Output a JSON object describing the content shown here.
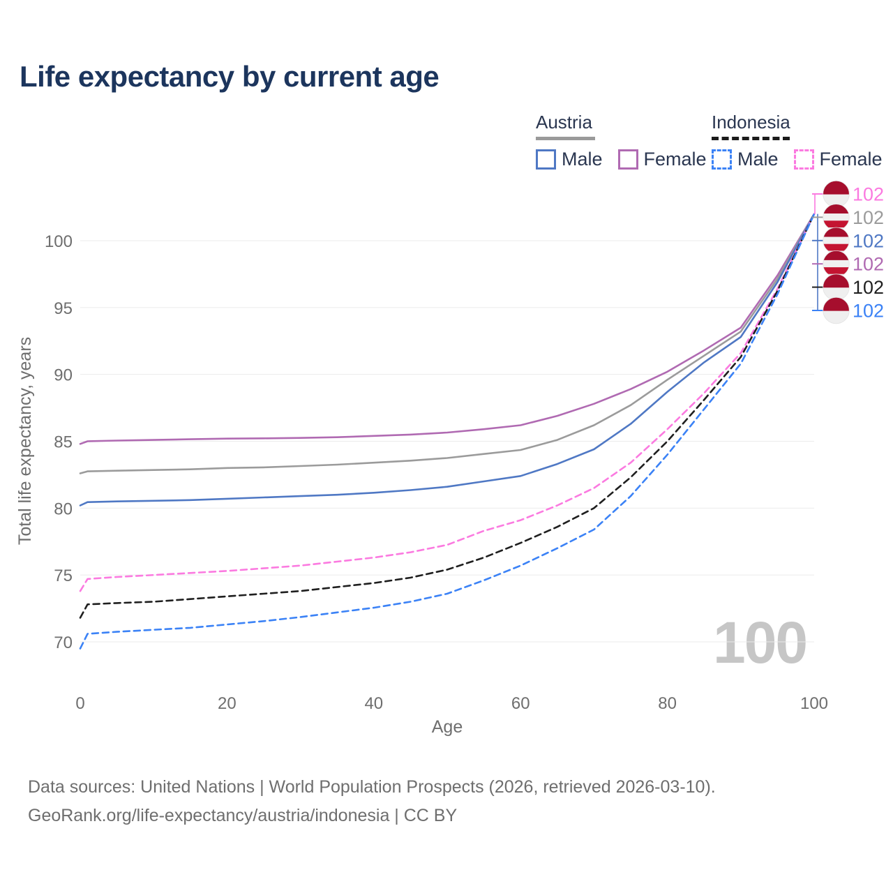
{
  "title": "Life expectancy by current age",
  "legend": {
    "groups": [
      {
        "country": "Austria",
        "line_style": "solid",
        "underline_color": "#9a9a9a",
        "items": [
          {
            "label": "Male",
            "color": "#4f78c4",
            "dashed": false
          },
          {
            "label": "Female",
            "color": "#b06ab2",
            "dashed": false
          }
        ]
      },
      {
        "country": "Indonesia",
        "line_style": "dashed",
        "underline_color": "#1b1b1b",
        "items": [
          {
            "label": "Male",
            "color": "#3b82f6",
            "dashed": true
          },
          {
            "label": "Female",
            "color": "#fb7ae0",
            "dashed": true
          }
        ]
      }
    ]
  },
  "chart_data": {
    "type": "line",
    "title": "Life expectancy by current age",
    "xlabel": "Age",
    "ylabel": "Total life expectancy, years",
    "x_ticks": [
      0,
      20,
      40,
      60,
      80,
      100
    ],
    "y_ticks": [
      70,
      75,
      80,
      85,
      90,
      95,
      100
    ],
    "xlim": [
      0,
      100
    ],
    "ylim": [
      68.5,
      103
    ],
    "grid": "horizontal",
    "watermark": "100",
    "x": [
      0,
      1,
      5,
      10,
      15,
      20,
      25,
      30,
      35,
      40,
      45,
      50,
      55,
      60,
      65,
      70,
      75,
      80,
      85,
      90,
      95,
      100
    ],
    "series": [
      {
        "name": "Austria Female",
        "color": "#b06ab2",
        "dashed": false,
        "values": [
          84.8,
          85.0,
          85.05,
          85.1,
          85.15,
          85.2,
          85.22,
          85.25,
          85.3,
          85.4,
          85.5,
          85.65,
          85.9,
          86.2,
          86.9,
          87.8,
          88.9,
          90.2,
          91.8,
          93.5,
          97.4,
          102
        ]
      },
      {
        "name": "Austria Both sexes",
        "color": "#9b9b9b",
        "dashed": false,
        "values": [
          82.6,
          82.75,
          82.8,
          82.85,
          82.9,
          83.0,
          83.05,
          83.15,
          83.25,
          83.4,
          83.55,
          83.75,
          84.05,
          84.35,
          85.1,
          86.2,
          87.7,
          89.6,
          91.4,
          93.2,
          97.15,
          102
        ]
      },
      {
        "name": "Austria Male",
        "color": "#4f78c4",
        "dashed": false,
        "values": [
          80.2,
          80.45,
          80.5,
          80.55,
          80.6,
          80.7,
          80.8,
          80.9,
          81.0,
          81.15,
          81.35,
          81.6,
          82.0,
          82.4,
          83.3,
          84.4,
          86.3,
          88.7,
          90.9,
          92.8,
          96.9,
          102
        ]
      },
      {
        "name": "Indonesia Female",
        "color": "#fb7ae0",
        "dashed": true,
        "values": [
          73.8,
          74.7,
          74.85,
          75.0,
          75.15,
          75.3,
          75.5,
          75.7,
          76.0,
          76.3,
          76.7,
          77.25,
          78.3,
          79.1,
          80.2,
          81.5,
          83.4,
          85.9,
          88.6,
          91.6,
          96.4,
          102
        ]
      },
      {
        "name": "Indonesia Both sexes",
        "color": "#1f1f1f",
        "dashed": true,
        "values": [
          71.8,
          72.8,
          72.9,
          73.0,
          73.2,
          73.4,
          73.6,
          73.8,
          74.1,
          74.4,
          74.8,
          75.4,
          76.3,
          77.4,
          78.6,
          80.0,
          82.3,
          85.0,
          88.1,
          91.3,
          96.25,
          102
        ]
      },
      {
        "name": "Indonesia Male",
        "color": "#3b82f6",
        "dashed": true,
        "values": [
          69.5,
          70.6,
          70.75,
          70.9,
          71.05,
          71.3,
          71.55,
          71.85,
          72.2,
          72.55,
          73.0,
          73.6,
          74.6,
          75.7,
          77.0,
          78.4,
          80.9,
          84.0,
          87.4,
          90.8,
          96.0,
          102
        ]
      }
    ],
    "end_labels": [
      {
        "text": "102",
        "color": "#fb7ae0",
        "flag": "indonesia",
        "series": "Indonesia Female"
      },
      {
        "text": "102",
        "color": "#9b9b9b",
        "flag": "austria",
        "series": "Austria Both sexes"
      },
      {
        "text": "102",
        "color": "#4f78c4",
        "flag": "austria",
        "series": "Austria Male"
      },
      {
        "text": "102",
        "color": "#b06ab2",
        "flag": "austria",
        "series": "Austria Female"
      },
      {
        "text": "102",
        "color": "#1f1f1f",
        "flag": "indonesia",
        "series": "Indonesia Both sexes"
      },
      {
        "text": "102",
        "color": "#3b82f6",
        "flag": "indonesia",
        "series": "Indonesia Male"
      }
    ],
    "flags": {
      "austria": [
        [
          0,
          0.36,
          "#a60e2d"
        ],
        [
          0.36,
          0.63,
          "#f0f0f0"
        ],
        [
          0.63,
          0.89,
          "#c41431"
        ],
        [
          0.89,
          1,
          "#e8e8e8"
        ]
      ],
      "indonesia": [
        [
          0,
          0.52,
          "#a60e2d"
        ],
        [
          0.52,
          1,
          "#efefef"
        ]
      ]
    }
  },
  "footer": {
    "line1": "Data sources: United Nations | World Population Prospects (2026, retrieved 2026-03-10).",
    "line2": "GeoRank.org/life-expectancy/austria/indonesia | CC BY"
  }
}
